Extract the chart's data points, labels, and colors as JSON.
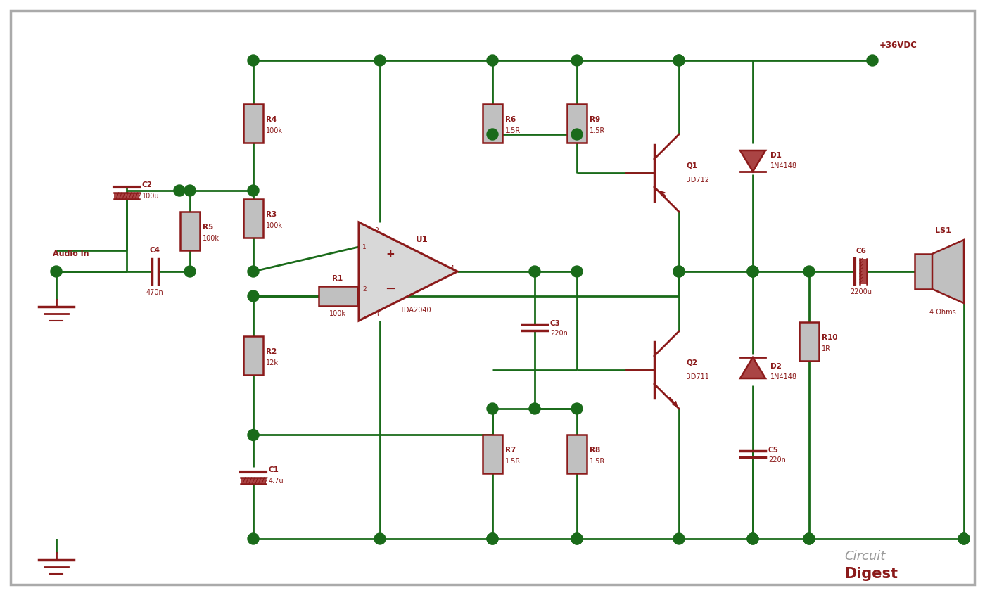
{
  "bg_color": "#ffffff",
  "border_color": "#aaaaaa",
  "wire_color": "#1a6b1a",
  "comp_color": "#8b1a1a",
  "comp_fill": "#c0c0c0",
  "comp_fill2": "#aa4444",
  "dot_color": "#1a6b1a",
  "label_color": "#8b1a1a",
  "vcc_label": "+36VDC",
  "audio_in_label": "Audio In",
  "watermark1": "Circuit",
  "watermark2": "Digest"
}
